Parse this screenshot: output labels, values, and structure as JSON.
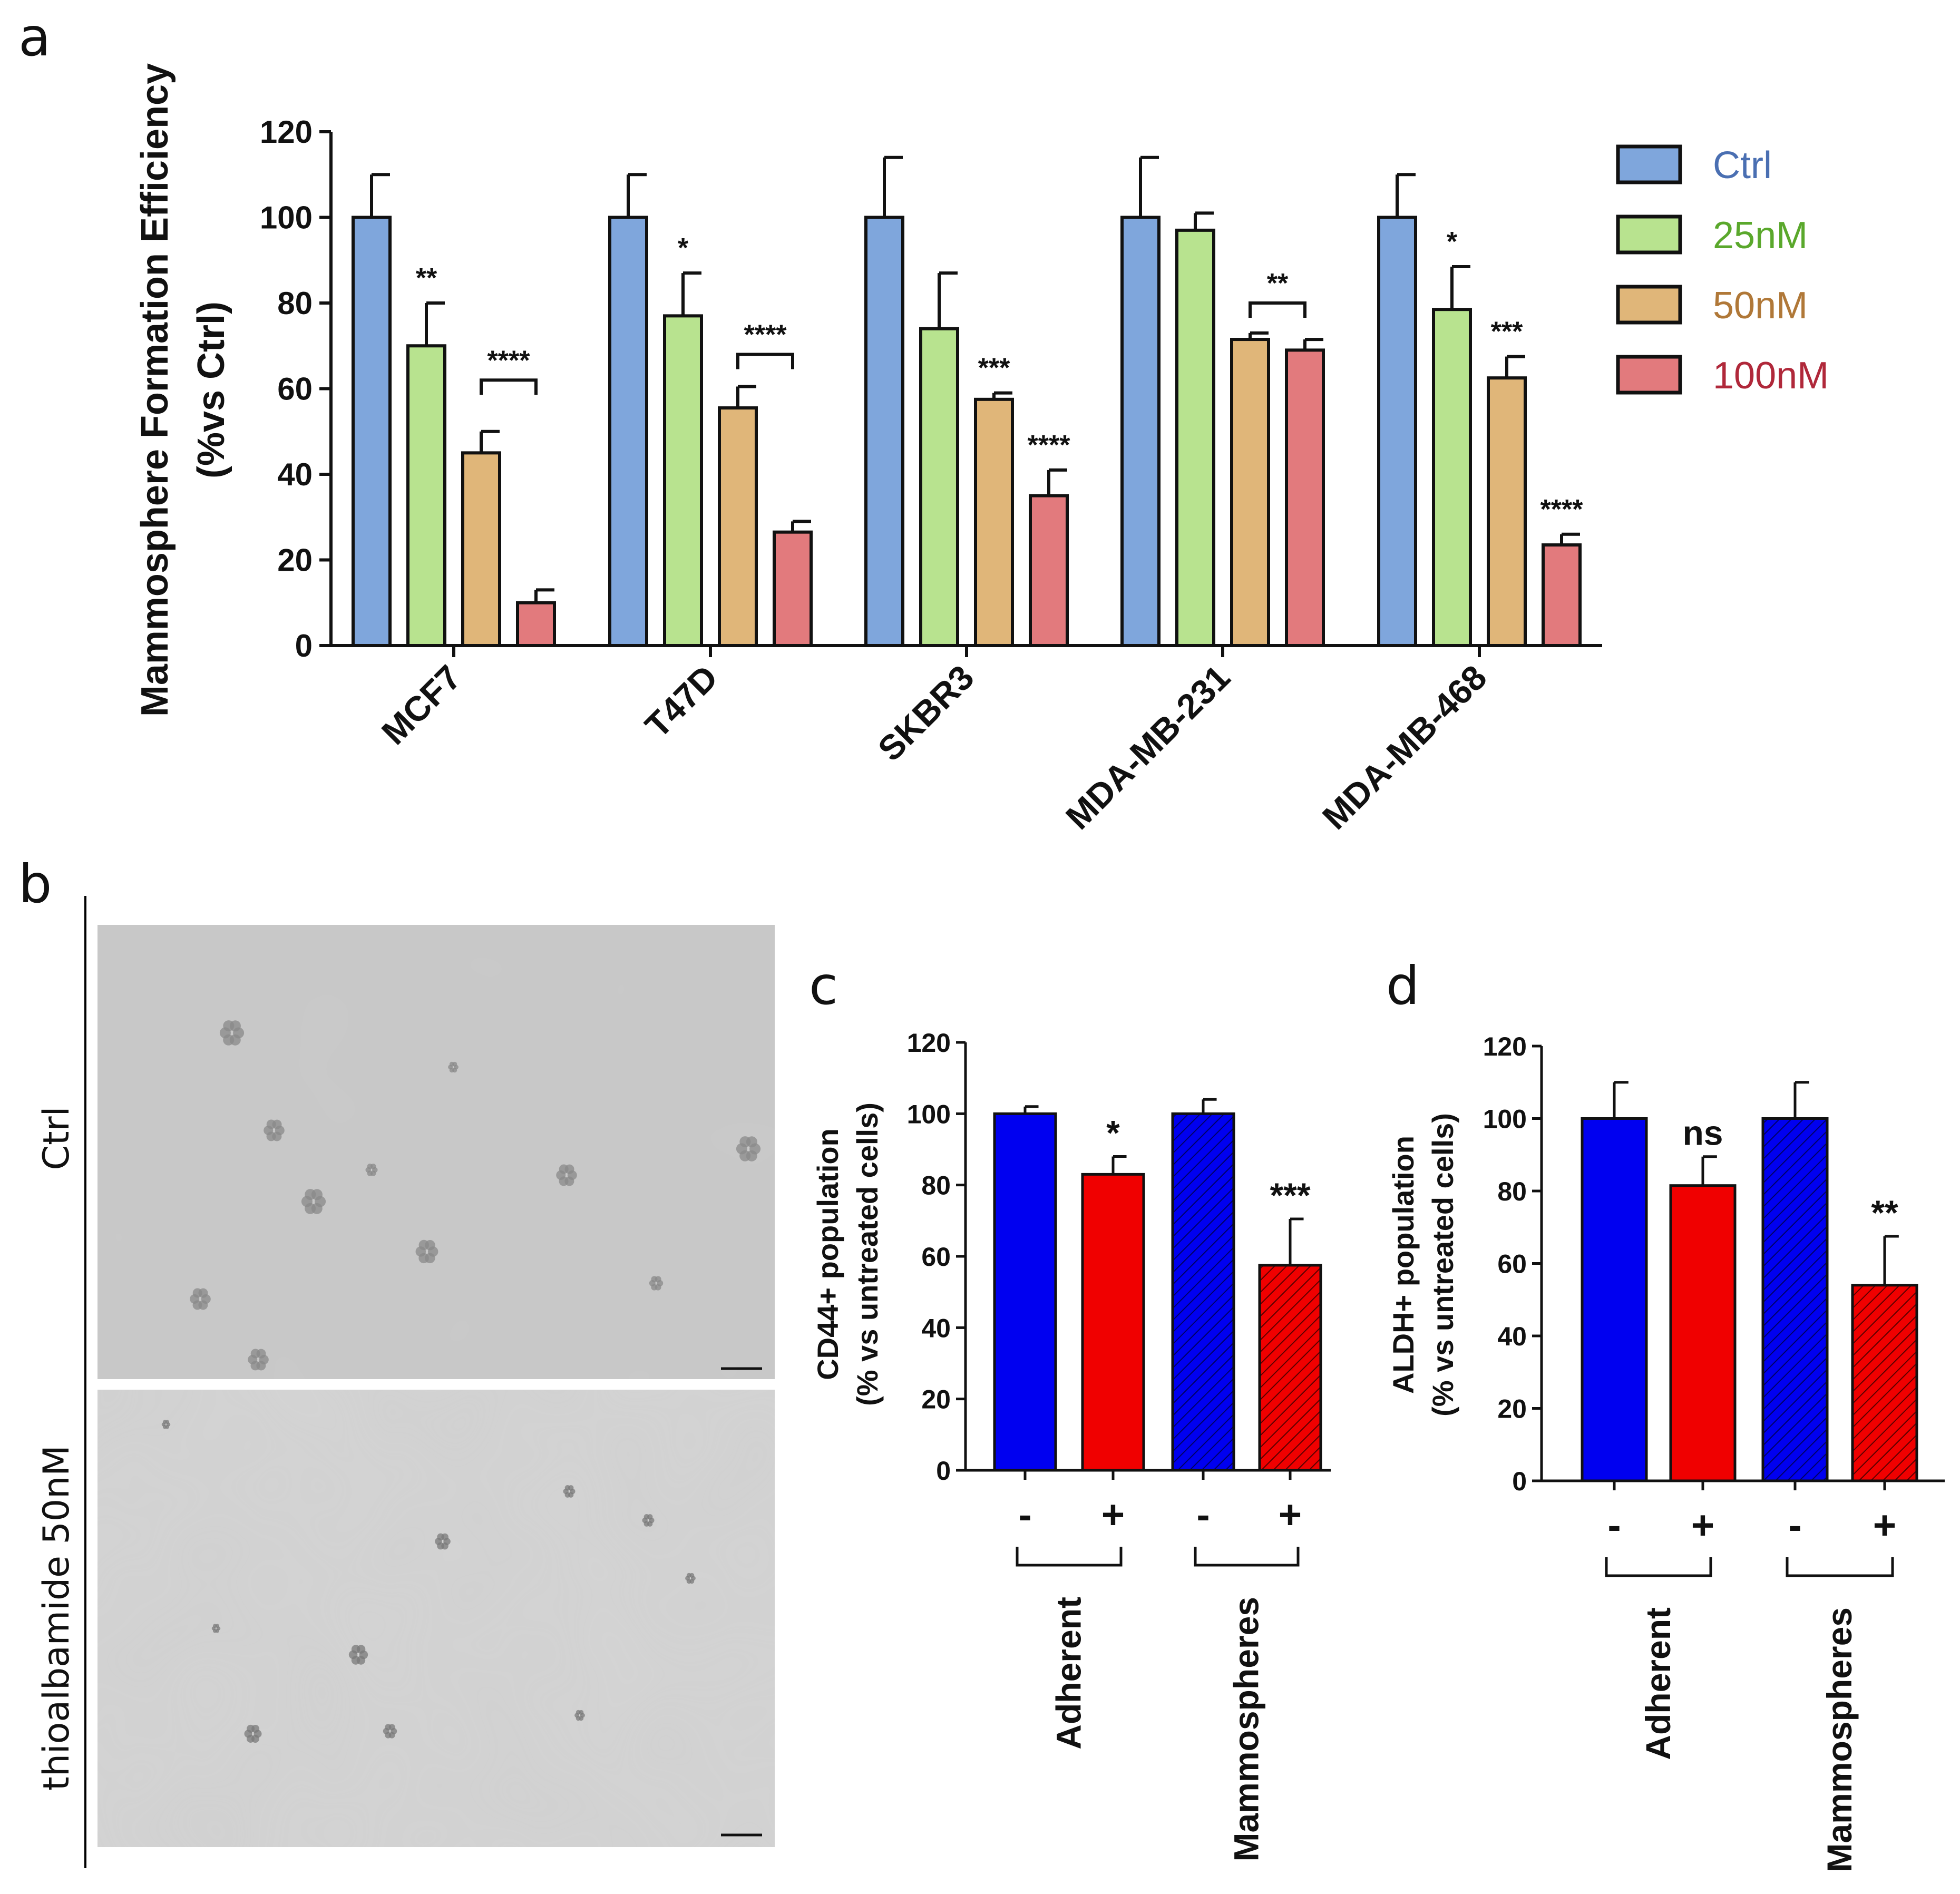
{
  "panels": {
    "a": "a",
    "b": "b",
    "c": "c",
    "d": "d"
  },
  "colors": {
    "ctrl": "#7fa6dc",
    "nm25": "#b8e38f",
    "nm50": "#e0b679",
    "nm100": "#e27a7d",
    "ctrl_text": "#4a6fb2",
    "nm25_text": "#5aa82c",
    "nm50_text": "#b07838",
    "nm100_text": "#b0283a",
    "blue": "#0000f0",
    "red": "#f00000"
  },
  "chart_data": [
    {
      "id": "a",
      "type": "bar",
      "ylabel": "Mammosphere Formation Efficiency",
      "ylabel2": "(%vs Ctrl)",
      "ylim": [
        0,
        120
      ],
      "yticks": [
        "0",
        "20",
        "40",
        "60",
        "80",
        "100",
        "120"
      ],
      "categories": [
        "MCF7",
        "T47D",
        "SKBR3",
        "MDA-MB-231",
        "MDA-MB-468"
      ],
      "legend_position": "top-right",
      "series": [
        {
          "name": "Ctrl",
          "values": [
            100,
            100,
            100,
            100,
            100
          ],
          "errors": [
            10,
            10,
            14,
            14,
            10
          ]
        },
        {
          "name": "25nM",
          "values": [
            70,
            77,
            74,
            97,
            78.5
          ],
          "errors": [
            10,
            10,
            13,
            4,
            10
          ]
        },
        {
          "name": "50nM",
          "values": [
            45,
            55.5,
            57.5,
            71.5,
            62.5
          ],
          "errors": [
            5,
            5,
            1.5,
            1.5,
            5
          ]
        },
        {
          "name": "100nM",
          "values": [
            10,
            26.5,
            35,
            69,
            23.5
          ],
          "errors": [
            3,
            2.5,
            6,
            2.5,
            2.5
          ]
        }
      ],
      "annotations": [
        {
          "text": "**",
          "category": 0,
          "series": 1
        },
        {
          "text": "*",
          "category": 1,
          "series": 1
        },
        {
          "text": "***",
          "category": 2,
          "series": 2
        },
        {
          "text": "****",
          "category": 2,
          "series": 3
        },
        {
          "text": "*",
          "category": 4,
          "series": 1
        },
        {
          "text": "***",
          "category": 4,
          "series": 2
        },
        {
          "text": "****",
          "category": 4,
          "series": 3
        }
      ],
      "brackets": [
        {
          "text": "****",
          "category": 0,
          "from": 2,
          "to": 3,
          "level": 62
        },
        {
          "text": "****",
          "category": 1,
          "from": 2,
          "to": 3,
          "level": 68
        },
        {
          "text": "**",
          "category": 3,
          "from": 2,
          "to": 3,
          "level": 80
        }
      ]
    },
    {
      "id": "c",
      "type": "bar",
      "ylabel": "CD44+ population",
      "ylabel2": "(% vs untreated cells)",
      "ylim": [
        0,
        120
      ],
      "yticks": [
        "0",
        "20",
        "40",
        "60",
        "80",
        "100",
        "120"
      ],
      "bars": [
        {
          "treatment": "-",
          "group": "Adherent",
          "value": 100,
          "error": 2,
          "color": "blue",
          "hatched": false,
          "sig": ""
        },
        {
          "treatment": "+",
          "group": "Adherent",
          "value": 83,
          "error": 5,
          "color": "red",
          "hatched": false,
          "sig": "*"
        },
        {
          "treatment": "-",
          "group": "Mammospheres",
          "value": 100,
          "error": 4,
          "color": "blue",
          "hatched": true,
          "sig": ""
        },
        {
          "treatment": "+",
          "group": "Mammospheres",
          "value": 57.5,
          "error": 13,
          "color": "red",
          "hatched": true,
          "sig": "***"
        }
      ],
      "groups": [
        "Adherent",
        "Mammospheres"
      ]
    },
    {
      "id": "d",
      "type": "bar",
      "ylabel": "ALDH+ population",
      "ylabel2": "(% vs untreated cells)",
      "ylim": [
        0,
        120
      ],
      "yticks": [
        "0",
        "20",
        "40",
        "60",
        "80",
        "100",
        "120"
      ],
      "bars": [
        {
          "treatment": "-",
          "group": "Adherent",
          "value": 100,
          "error": 10,
          "color": "blue",
          "hatched": false,
          "sig": ""
        },
        {
          "treatment": "+",
          "group": "Adherent",
          "value": 81.5,
          "error": 8,
          "color": "red",
          "hatched": false,
          "sig": "ns"
        },
        {
          "treatment": "-",
          "group": "Mammospheres",
          "value": 100,
          "error": 10,
          "color": "blue",
          "hatched": true,
          "sig": ""
        },
        {
          "treatment": "+",
          "group": "Mammospheres",
          "value": 54,
          "error": 13.5,
          "color": "red",
          "hatched": true,
          "sig": "**"
        }
      ],
      "groups": [
        "Adherent",
        "Mammospheres"
      ]
    }
  ],
  "micrographs": {
    "top_label": "Ctrl",
    "bottom_label": "thioalbamide 50nM"
  }
}
